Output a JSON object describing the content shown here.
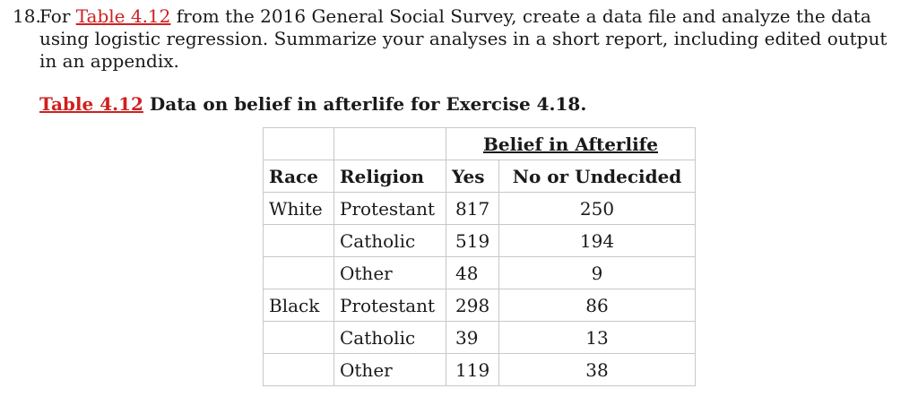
{
  "exercise": {
    "number": "18.",
    "text_before_link": "For ",
    "link_text": "Table 4.12",
    "text_after_link": " from the 2016 General Social Survey, create a data file and analyze the data using logistic regression. Summarize your analyses in a short report, including edited output in an appendix."
  },
  "caption": {
    "link_text": "Table 4.12",
    "text": " Data on belief in afterlife for Exercise 4.18."
  },
  "table": {
    "group_header": "Belief in Afterlife",
    "headers": {
      "race": "Race",
      "religion": "Religion",
      "yes": "Yes",
      "no": "No or Undecided"
    },
    "rows": [
      {
        "race": "White",
        "religion": "Protestant",
        "yes": "817",
        "no": "250"
      },
      {
        "race": "",
        "religion": "Catholic",
        "yes": "519",
        "no": "194"
      },
      {
        "race": "",
        "religion": "Other",
        "yes": "48",
        "no": "9"
      },
      {
        "race": "Black",
        "religion": "Protestant",
        "yes": "298",
        "no": "86"
      },
      {
        "race": "",
        "religion": "Catholic",
        "yes": "39",
        "no": "13"
      },
      {
        "race": "",
        "religion": "Other",
        "yes": "119",
        "no": "38"
      }
    ]
  },
  "colors": {
    "link": "#d11f1f",
    "text": "#1a1a1a",
    "border": "#c8c8c8"
  }
}
